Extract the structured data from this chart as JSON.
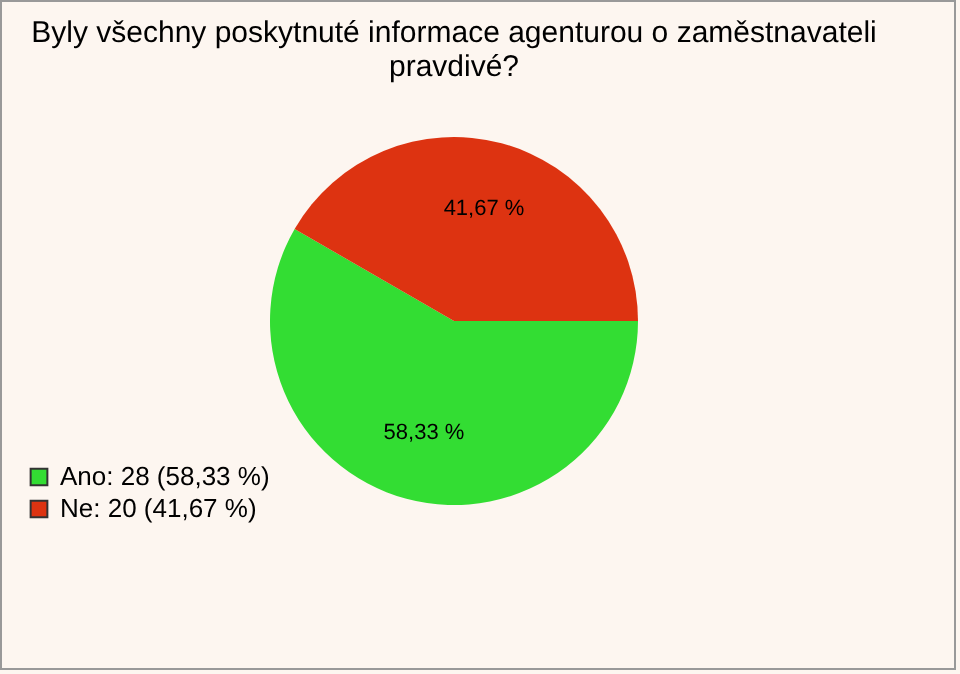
{
  "chart_data": {
    "type": "pie",
    "title": [
      "Byly všechny poskytnuté informace agenturou o zaměstnavateli",
      "pravdivé?"
    ],
    "categories": [
      "Ano: 28 (58,33 %)",
      "Ne: 20 (41,67 %)"
    ],
    "values": [
      58.33,
      41.67
    ],
    "value_labels": [
      "58,33 %",
      "41,67 %"
    ],
    "colors": [
      "#33dd33",
      "#dd3311"
    ],
    "legend": "bottom left"
  }
}
